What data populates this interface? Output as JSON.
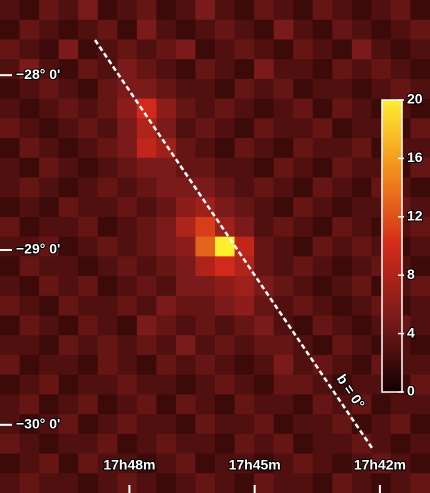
{
  "chart_data": {
    "type": "heatmap",
    "xlim": [
      1071.1,
      1060.8
    ],
    "ylim": [
      -30.39,
      -27.57
    ],
    "xticks": [
      {
        "value": 1068,
        "label": "17h48m"
      },
      {
        "value": 1065,
        "label": "17h45m"
      },
      {
        "value": 1062,
        "label": "17h42m"
      }
    ],
    "yticks": [
      {
        "value": -28,
        "label": "−28° 0'"
      },
      {
        "value": -29,
        "label": "−29° 0'"
      },
      {
        "value": -30,
        "label": "−30° 0'"
      }
    ],
    "clim": [
      0,
      20
    ],
    "cticks": [
      0,
      4,
      8,
      12,
      16,
      20
    ],
    "annotation": "b = 0°",
    "z": [
      [
        3,
        2,
        4,
        3,
        5,
        2,
        3,
        4,
        2,
        3,
        5,
        3,
        2,
        4,
        3,
        2,
        4,
        3,
        2,
        3,
        4,
        2
      ],
      [
        2,
        4,
        3,
        2,
        3,
        4,
        2,
        5,
        3,
        2,
        3,
        4,
        3,
        2,
        5,
        3,
        2,
        4,
        3,
        2,
        3,
        4
      ],
      [
        4,
        3,
        2,
        5,
        2,
        3,
        4,
        3,
        4,
        5,
        2,
        3,
        4,
        3,
        2,
        4,
        3,
        2,
        5,
        3,
        2,
        3
      ],
      [
        3,
        5,
        3,
        2,
        4,
        3,
        5,
        4,
        3,
        2,
        4,
        3,
        2,
        5,
        3,
        3,
        2,
        4,
        3,
        4,
        3,
        2
      ],
      [
        2,
        3,
        4,
        3,
        2,
        4,
        5,
        5,
        4,
        3,
        3,
        2,
        4,
        3,
        4,
        2,
        3,
        3,
        2,
        3,
        4,
        3
      ],
      [
        3,
        2,
        3,
        4,
        3,
        4,
        6,
        10,
        6,
        4,
        3,
        4,
        3,
        2,
        3,
        4,
        2,
        4,
        3,
        2,
        3,
        2
      ],
      [
        4,
        3,
        2,
        3,
        4,
        3,
        5,
        8,
        5,
        3,
        4,
        3,
        2,
        4,
        3,
        3,
        4,
        2,
        3,
        3,
        2,
        4
      ],
      [
        2,
        4,
        3,
        2,
        3,
        4,
        5,
        9,
        7,
        4,
        3,
        2,
        4,
        3,
        2,
        4,
        3,
        3,
        4,
        2,
        3,
        3
      ],
      [
        3,
        2,
        4,
        3,
        2,
        3,
        4,
        5,
        5,
        4,
        4,
        3,
        3,
        2,
        4,
        3,
        2,
        4,
        3,
        3,
        2,
        4
      ],
      [
        3,
        4,
        3,
        2,
        3,
        4,
        3,
        4,
        5,
        5,
        5,
        4,
        3,
        4,
        3,
        2,
        4,
        3,
        2,
        4,
        3,
        2
      ],
      [
        2,
        3,
        2,
        4,
        3,
        3,
        4,
        3,
        4,
        6,
        7,
        5,
        4,
        3,
        2,
        4,
        3,
        2,
        3,
        3,
        4,
        3
      ],
      [
        4,
        2,
        3,
        3,
        4,
        2,
        3,
        4,
        5,
        8,
        11,
        7,
        5,
        3,
        4,
        3,
        2,
        4,
        3,
        2,
        3,
        4
      ],
      [
        3,
        3,
        4,
        2,
        3,
        4,
        3,
        4,
        5,
        6,
        13,
        20,
        9,
        4,
        3,
        2,
        4,
        3,
        4,
        3,
        2,
        3
      ],
      [
        2,
        4,
        3,
        3,
        2,
        3,
        4,
        3,
        4,
        5,
        8,
        10,
        8,
        4,
        3,
        4,
        3,
        2,
        3,
        4,
        3,
        2
      ],
      [
        3,
        2,
        4,
        3,
        4,
        2,
        3,
        4,
        3,
        5,
        5,
        6,
        7,
        5,
        4,
        3,
        2,
        3,
        4,
        2,
        3,
        4
      ],
      [
        4,
        3,
        2,
        4,
        3,
        3,
        4,
        3,
        5,
        4,
        4,
        5,
        6,
        4,
        3,
        4,
        3,
        2,
        3,
        4,
        2,
        3
      ],
      [
        2,
        4,
        3,
        2,
        4,
        3,
        2,
        5,
        4,
        3,
        4,
        3,
        4,
        5,
        3,
        2,
        4,
        3,
        2,
        3,
        4,
        3
      ],
      [
        3,
        3,
        2,
        4,
        3,
        4,
        3,
        4,
        3,
        5,
        3,
        4,
        3,
        4,
        4,
        3,
        2,
        4,
        3,
        2,
        3,
        2
      ],
      [
        4,
        2,
        3,
        3,
        2,
        4,
        3,
        2,
        4,
        3,
        4,
        3,
        2,
        3,
        5,
        3,
        4,
        3,
        2,
        4,
        3,
        3
      ],
      [
        2,
        3,
        4,
        2,
        3,
        3,
        4,
        3,
        3,
        2,
        3,
        4,
        3,
        2,
        4,
        4,
        3,
        2,
        3,
        3,
        2,
        4
      ],
      [
        3,
        4,
        2,
        3,
        4,
        2,
        3,
        4,
        2,
        4,
        3,
        2,
        4,
        3,
        3,
        2,
        4,
        3,
        4,
        2,
        3,
        3
      ],
      [
        3,
        2,
        3,
        4,
        2,
        3,
        4,
        3,
        3,
        2,
        4,
        3,
        3,
        4,
        2,
        3,
        3,
        4,
        2,
        3,
        4,
        2
      ],
      [
        4,
        3,
        2,
        3,
        3,
        4,
        2,
        3,
        4,
        3,
        3,
        2,
        4,
        3,
        4,
        2,
        3,
        3,
        4,
        3,
        2,
        3
      ],
      [
        2,
        3,
        4,
        2,
        4,
        3,
        3,
        2,
        3,
        4,
        2,
        3,
        3,
        2,
        3,
        4,
        3,
        2,
        3,
        4,
        3,
        2
      ],
      [
        3,
        4,
        3,
        3,
        2,
        3,
        4,
        3,
        2,
        3,
        4,
        3,
        2,
        4,
        3,
        3,
        2,
        4,
        3,
        2,
        3,
        4
      ]
    ]
  }
}
